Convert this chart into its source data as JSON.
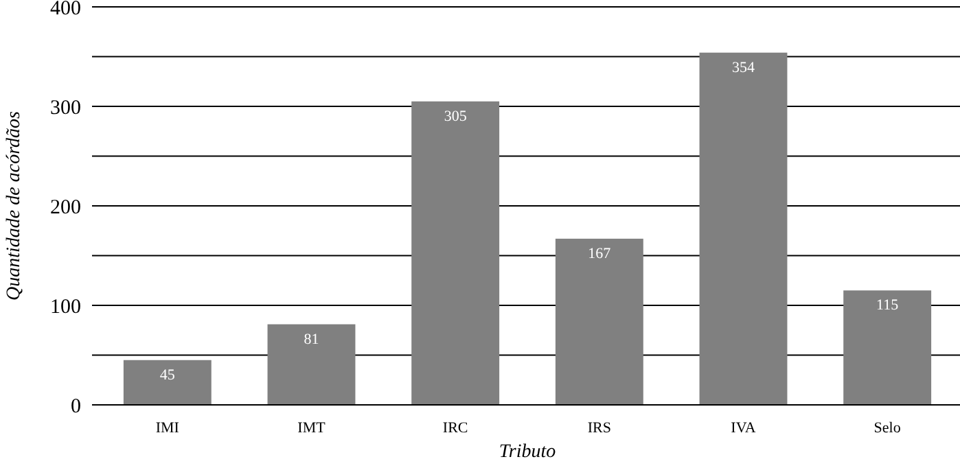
{
  "chart_data": {
    "type": "bar",
    "xlabel": "Tributo",
    "ylabel": "Quantidade de acórdãos",
    "categories": [
      "IMI",
      "IMT",
      "IRC",
      "IRS",
      "IVA",
      "Selo"
    ],
    "values": [
      45,
      81,
      305,
      167,
      354,
      115
    ],
    "color": "#808080",
    "ylim": [
      0,
      400
    ],
    "yticks": [
      0,
      {
        "value": 50,
        "label": null
      },
      100,
      {
        "value": 150,
        "label": null
      },
      200,
      {
        "value": 250,
        "label": null
      },
      300,
      {
        "value": 350,
        "label": null
      },
      400
    ],
    "grid": "y",
    "data_labels": true
  }
}
